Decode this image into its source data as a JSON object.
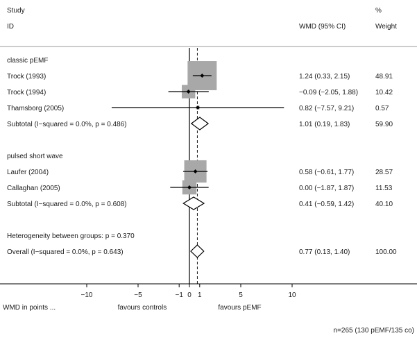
{
  "chart_data": {
    "type": "forest",
    "header": {
      "study_col": "Study",
      "id_col": "ID",
      "effect_col": "WMD (95% CI)",
      "pct_col": "%",
      "weight_col": "Weight"
    },
    "groups": [
      {
        "label": "classic pEMF",
        "studies": [
          {
            "id": "Trock (1993)",
            "est": 1.24,
            "lo": 0.33,
            "hi": 2.15,
            "ci_text": "1.24 (0.33, 2.15)",
            "weight": "48.91"
          },
          {
            "id": "Trock (1994)",
            "est": -0.09,
            "lo": -2.05,
            "hi": 1.88,
            "ci_text": "−0.09 (−2.05, 1.88)",
            "weight": "10.42"
          },
          {
            "id": "Thamsborg (2005)",
            "est": 0.82,
            "lo": -7.57,
            "hi": 9.21,
            "ci_text": "0.82 (−7.57, 9.21)",
            "weight": "0.57"
          }
        ],
        "subtotal": {
          "label": "Subtotal  (I−squared = 0.0%, p = 0.486)",
          "est": 1.01,
          "lo": 0.19,
          "hi": 1.83,
          "ci_text": "1.01 (0.19, 1.83)",
          "weight": "59.90"
        }
      },
      {
        "label": "pulsed short wave",
        "studies": [
          {
            "id": "Laufer (2004)",
            "est": 0.58,
            "lo": -0.61,
            "hi": 1.77,
            "ci_text": "0.58 (−0.61, 1.77)",
            "weight": "28.57"
          },
          {
            "id": "Callaghan (2005)",
            "est": 0.0,
            "lo": -1.87,
            "hi": 1.87,
            "ci_text": "0.00 (−1.87, 1.87)",
            "weight": "11.53"
          }
        ],
        "subtotal": {
          "label": "Subtotal  (I−squared = 0.0%, p = 0.608)",
          "est": 0.41,
          "lo": -0.59,
          "hi": 1.42,
          "ci_text": "0.41 (−0.59, 1.42)",
          "weight": "40.10"
        }
      }
    ],
    "heterogeneity": "Heterogeneity between groups: p = 0.370",
    "overall": {
      "label": "Overall  (I−squared = 0.0%, p = 0.643)",
      "est": 0.77,
      "lo": 0.13,
      "hi": 1.4,
      "ci_text": "0.77 (0.13, 1.40)",
      "weight": "100.00"
    },
    "x_axis": {
      "ticks": [
        -10,
        -5,
        -1,
        0,
        1,
        5,
        10
      ],
      "tick_labels": [
        "−10",
        "−5",
        "−1",
        "0",
        "1",
        "5",
        "10"
      ],
      "range": [
        -10,
        10
      ]
    },
    "xlabel": "WMD in points ...",
    "favours_left": "favours controls",
    "favours_right": "favours pEMF",
    "footnote": "n=265 (130 pEMF/135 co)"
  }
}
